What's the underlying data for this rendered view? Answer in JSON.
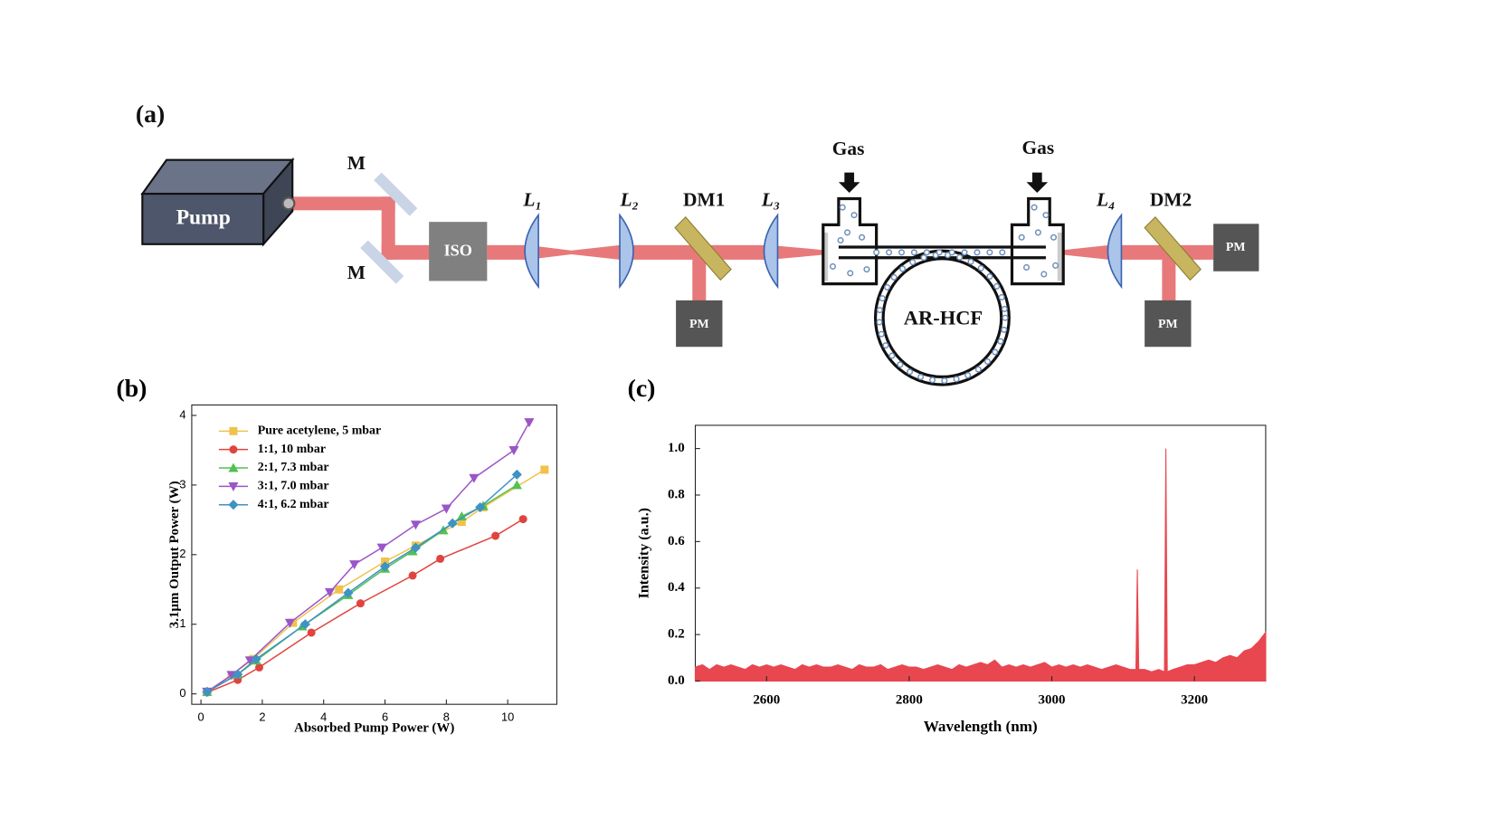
{
  "diagram": {
    "panel_label": "(a)",
    "labels": {
      "pump": "Pump",
      "mirror_top": "M",
      "mirror_bottom": "M",
      "isolator": "ISO",
      "lens_1": "L₁",
      "lens_2": "L₂",
      "dichroic_1": "DM1",
      "lens_3": "L₃",
      "gas_left": "Gas",
      "gas_right": "Gas",
      "lens_4": "L₄",
      "dichroic_2": "DM2",
      "power_meter_1": "PM",
      "power_meter_2": "PM",
      "power_meter_3": "PM",
      "fiber": "AR-HCF"
    }
  },
  "chart_data": [
    {
      "type": "line",
      "panel_label": "(b)",
      "x_label": "Absorbed Pump Power (W)",
      "y_label": "3.1μm Output Power (W)",
      "xlim": [
        -0.3,
        11.6
      ],
      "ylim": [
        -0.15,
        4.15
      ],
      "xticks": [
        0,
        2,
        4,
        6,
        8,
        10
      ],
      "yticks": [
        0,
        1,
        2,
        3,
        4
      ],
      "legend": "upper left",
      "series": [
        {
          "name": "Pure acetylene, 5 mbar",
          "color": "#f0c24a",
          "marker": "square",
          "x": [
            0.2,
            1,
            1.7,
            3,
            4.5,
            6,
            7,
            8.5,
            9.2,
            11.2
          ],
          "values": [
            0.03,
            0.27,
            0.5,
            1.02,
            1.5,
            1.9,
            2.13,
            2.47,
            2.68,
            3.22
          ]
        },
        {
          "name": "1:1, 10  mbar",
          "color": "#e0443e",
          "marker": "circle",
          "x": [
            0.2,
            1.2,
            1.9,
            3.6,
            5.2,
            6.9,
            7.8,
            9.6,
            10.5
          ],
          "values": [
            0.02,
            0.2,
            0.38,
            0.88,
            1.3,
            1.7,
            1.94,
            2.27,
            2.51
          ]
        },
        {
          "name": "2:1, 7.3 mbar",
          "color": "#52c052",
          "marker": "triangle-up",
          "x": [
            0.2,
            1.2,
            1.8,
            3.3,
            4.8,
            6,
            6.9,
            7.9,
            8.5,
            9.2,
            10.3
          ],
          "values": [
            0.03,
            0.28,
            0.48,
            0.97,
            1.42,
            1.8,
            2.05,
            2.35,
            2.55,
            2.7,
            3.0
          ]
        },
        {
          "name": "3:1, 7.0 mbar",
          "color": "#9a55c8",
          "marker": "triangle-down",
          "x": [
            0.2,
            1,
            1.6,
            2.9,
            4.2,
            5,
            5.9,
            7,
            8,
            8.9,
            10.2,
            10.7
          ],
          "values": [
            0.03,
            0.27,
            0.48,
            1.02,
            1.46,
            1.86,
            2.1,
            2.43,
            2.66,
            3.1,
            3.5,
            3.9
          ]
        },
        {
          "name": "4:1, 6.2 mbar",
          "color": "#3f92c4",
          "marker": "diamond",
          "x": [
            0.2,
            1.2,
            1.8,
            3.4,
            4.8,
            6,
            7,
            8.2,
            9.1,
            10.3
          ],
          "values": [
            0.03,
            0.28,
            0.5,
            1.0,
            1.45,
            1.83,
            2.1,
            2.45,
            2.68,
            3.15
          ]
        }
      ]
    },
    {
      "type": "area",
      "panel_label": "(c)",
      "x_label": "Wavelength (nm)",
      "y_label": "Intensity (a.u.)",
      "xlim": [
        2500,
        3300
      ],
      "ylim": [
        0,
        1.1
      ],
      "xticks": [
        2600,
        2800,
        3000,
        3200
      ],
      "yticks": [
        {
          "value": 0,
          "label": "0.0"
        },
        {
          "value": 0.2,
          "label": "0.2"
        },
        {
          "value": 0.4,
          "label": "0.4"
        },
        {
          "value": 0.6,
          "label": "0.6"
        },
        {
          "value": 0.8,
          "label": "0.8"
        },
        {
          "value": 1,
          "label": "1.0"
        }
      ],
      "color": "#e8474f",
      "x": [
        2500,
        2510,
        2520,
        2530,
        2540,
        2550,
        2560,
        2570,
        2580,
        2590,
        2600,
        2610,
        2620,
        2630,
        2640,
        2650,
        2660,
        2670,
        2680,
        2690,
        2700,
        2710,
        2720,
        2730,
        2740,
        2750,
        2760,
        2770,
        2780,
        2790,
        2800,
        2810,
        2820,
        2830,
        2840,
        2850,
        2860,
        2870,
        2880,
        2890,
        2900,
        2910,
        2920,
        2930,
        2940,
        2950,
        2960,
        2970,
        2980,
        2990,
        3000,
        3010,
        3020,
        3030,
        3040,
        3050,
        3060,
        3070,
        3080,
        3090,
        3100,
        3110,
        3118,
        3120,
        3122,
        3130,
        3140,
        3150,
        3158,
        3160,
        3162,
        3170,
        3180,
        3190,
        3200,
        3210,
        3220,
        3230,
        3240,
        3250,
        3260,
        3270,
        3280,
        3290,
        3300
      ],
      "values": [
        0.06,
        0.07,
        0.05,
        0.07,
        0.06,
        0.07,
        0.06,
        0.05,
        0.07,
        0.06,
        0.07,
        0.06,
        0.07,
        0.06,
        0.05,
        0.07,
        0.06,
        0.07,
        0.06,
        0.06,
        0.07,
        0.06,
        0.05,
        0.07,
        0.06,
        0.06,
        0.07,
        0.05,
        0.06,
        0.07,
        0.06,
        0.06,
        0.05,
        0.06,
        0.07,
        0.06,
        0.05,
        0.07,
        0.06,
        0.07,
        0.08,
        0.07,
        0.09,
        0.06,
        0.07,
        0.06,
        0.07,
        0.06,
        0.07,
        0.08,
        0.06,
        0.07,
        0.06,
        0.07,
        0.06,
        0.07,
        0.06,
        0.05,
        0.06,
        0.07,
        0.06,
        0.05,
        0.05,
        0.48,
        0.05,
        0.05,
        0.04,
        0.05,
        0.04,
        1.0,
        0.04,
        0.05,
        0.06,
        0.07,
        0.07,
        0.08,
        0.09,
        0.08,
        0.1,
        0.11,
        0.1,
        0.13,
        0.14,
        0.17,
        0.21
      ]
    }
  ]
}
